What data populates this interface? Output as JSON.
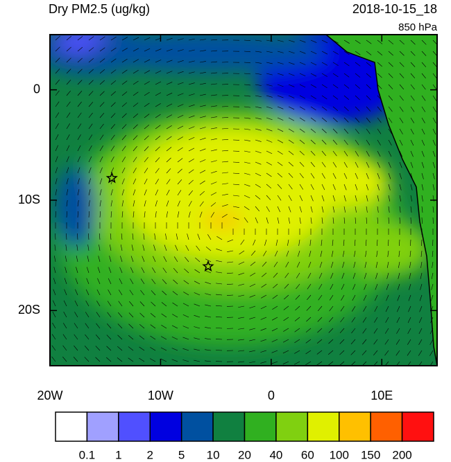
{
  "map": {
    "title": "Dry PM2.5 (ug/kg)",
    "time": "2018-10-15_18",
    "level": "850 hPa",
    "lon_range": [
      -20,
      15
    ],
    "lat_range": [
      -25,
      5
    ],
    "lon_ticks": [
      {
        "value": -20,
        "label": "20W"
      },
      {
        "value": -10,
        "label": "10W"
      },
      {
        "value": 0,
        "label": "0"
      },
      {
        "value": 10,
        "label": "10E"
      }
    ],
    "lat_ticks": [
      {
        "value": 0,
        "label": "0"
      },
      {
        "value": -10,
        "label": "10S"
      },
      {
        "value": -20,
        "label": "20S"
      }
    ],
    "markers": [
      {
        "lon": -14.4,
        "lat": -8
      },
      {
        "lon": -5.7,
        "lat": -16
      }
    ],
    "colorbar": {
      "colors": [
        "#ffffff",
        "#a0a0ff",
        "#5050ff",
        "#0000e0",
        "#0050a0",
        "#108040",
        "#30b020",
        "#80d010",
        "#e0f000",
        "#ffc000",
        "#ff6000",
        "#ff1010"
      ],
      "labels": [
        "0.1",
        "1",
        "2",
        "5",
        "10",
        "20",
        "40",
        "60",
        "100",
        "150",
        "200"
      ]
    }
  }
}
